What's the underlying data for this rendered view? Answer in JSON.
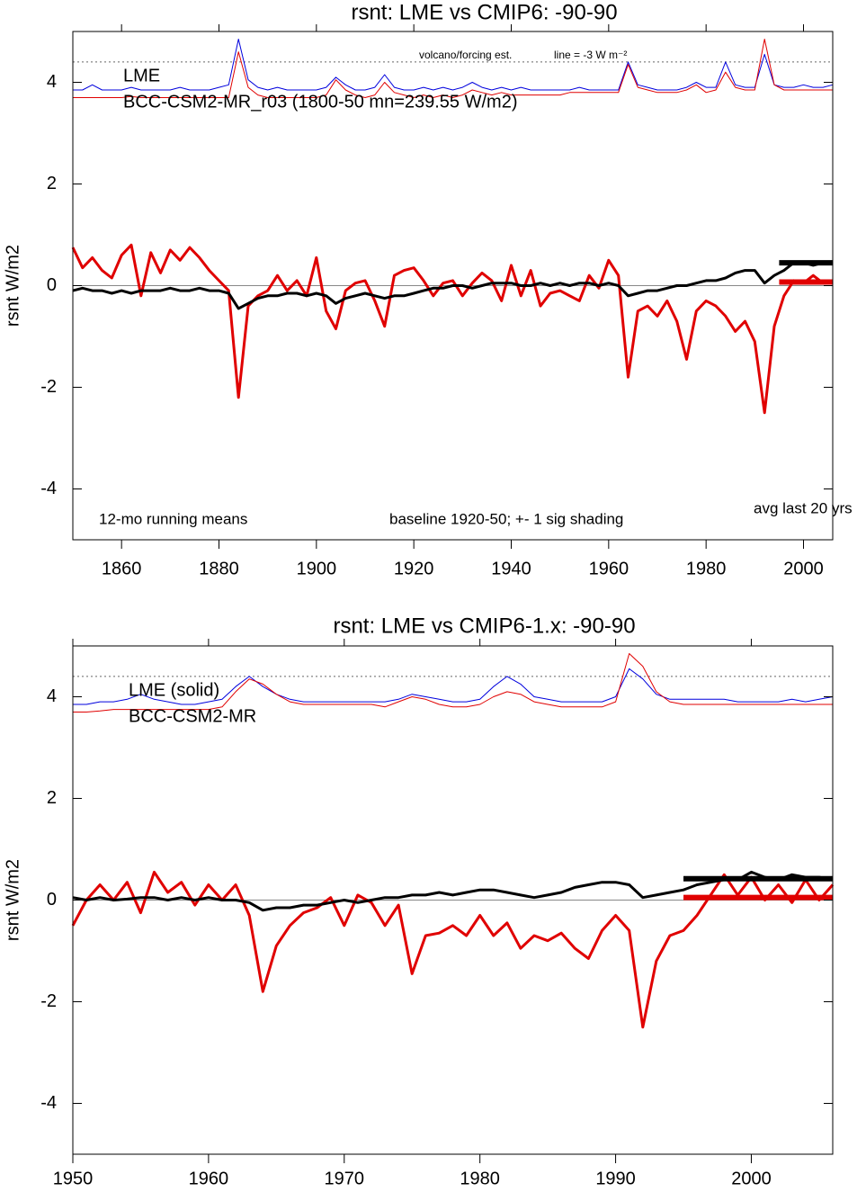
{
  "chart_data": [
    {
      "type": "line",
      "title": "rsnt: LME vs CMIP6: -90-90",
      "ylabel": "rsnt W/m2",
      "xlim": [
        1850,
        2006
      ],
      "ylim": [
        -5,
        5
      ],
      "xticks": [
        1860,
        1880,
        1900,
        1920,
        1940,
        1960,
        1980,
        2000
      ],
      "yticks": [
        -4,
        -2,
        0,
        2,
        4
      ],
      "annotations": [
        "volcano/forcing est.",
        "line = -3 W m⁻²",
        "12-mo running means",
        "baseline 1920-50; +- 1 sig shading",
        "avg last 20 yrs"
      ],
      "reference_lines": [
        {
          "value": 0,
          "style": "solid"
        },
        {
          "value": 4.4,
          "style": "dotted"
        }
      ],
      "averages": [
        {
          "color": "#000000",
          "value": 0.45,
          "x": [
            1995,
            2006
          ]
        },
        {
          "color": "#e00000",
          "value": 0.07,
          "x": [
            1995,
            2006
          ]
        }
      ],
      "x": [
        1850,
        1852,
        1854,
        1856,
        1858,
        1860,
        1862,
        1864,
        1866,
        1868,
        1870,
        1872,
        1874,
        1876,
        1878,
        1880,
        1882,
        1884,
        1886,
        1888,
        1890,
        1892,
        1894,
        1896,
        1898,
        1900,
        1902,
        1904,
        1906,
        1908,
        1910,
        1912,
        1914,
        1916,
        1918,
        1920,
        1922,
        1924,
        1926,
        1928,
        1930,
        1932,
        1934,
        1936,
        1938,
        1940,
        1942,
        1944,
        1946,
        1948,
        1950,
        1952,
        1954,
        1956,
        1958,
        1960,
        1962,
        1964,
        1966,
        1968,
        1970,
        1972,
        1974,
        1976,
        1978,
        1980,
        1982,
        1984,
        1986,
        1988,
        1990,
        1992,
        1994,
        1996,
        1998,
        2000,
        2002,
        2004,
        2006
      ],
      "series": [
        {
          "color": "#0000dd",
          "width": 1,
          "values": [
            3.85,
            3.85,
            3.95,
            3.85,
            3.85,
            3.85,
            3.9,
            3.85,
            3.85,
            3.85,
            3.85,
            3.9,
            3.85,
            3.85,
            3.85,
            3.9,
            3.95,
            4.85,
            4.05,
            3.9,
            3.85,
            3.9,
            3.85,
            3.85,
            3.85,
            3.85,
            3.9,
            4.1,
            3.95,
            3.85,
            3.85,
            3.9,
            4.15,
            3.9,
            3.85,
            3.85,
            3.9,
            3.85,
            3.9,
            3.85,
            3.9,
            4.0,
            3.9,
            3.85,
            3.9,
            3.85,
            3.9,
            3.85,
            3.85,
            3.85,
            3.85,
            3.85,
            3.9,
            3.85,
            3.85,
            3.85,
            3.85,
            4.4,
            3.95,
            3.9,
            3.85,
            3.85,
            3.85,
            3.9,
            4.0,
            3.9,
            3.9,
            4.4,
            3.95,
            3.9,
            3.9,
            4.55,
            3.95,
            3.9,
            3.9,
            3.95,
            3.9,
            3.9,
            3.95
          ]
        },
        {
          "color": "#e00000",
          "width": 1,
          "values": [
            3.7,
            3.7,
            3.7,
            3.7,
            3.7,
            3.7,
            3.72,
            3.7,
            3.7,
            3.7,
            3.7,
            3.7,
            3.7,
            3.7,
            3.7,
            3.7,
            3.7,
            4.6,
            3.9,
            3.75,
            3.7,
            3.7,
            3.7,
            3.7,
            3.7,
            3.7,
            3.75,
            4.05,
            3.85,
            3.75,
            3.7,
            3.75,
            4.0,
            3.8,
            3.75,
            3.7,
            3.75,
            3.7,
            3.75,
            3.7,
            3.75,
            3.85,
            3.8,
            3.75,
            3.8,
            3.75,
            3.75,
            3.75,
            3.75,
            3.75,
            3.75,
            3.8,
            3.8,
            3.8,
            3.8,
            3.8,
            3.8,
            4.35,
            3.9,
            3.85,
            3.8,
            3.8,
            3.8,
            3.85,
            3.95,
            3.8,
            3.85,
            4.2,
            3.9,
            3.85,
            3.85,
            4.85,
            3.95,
            3.85,
            3.85,
            3.85,
            3.85,
            3.85,
            3.85
          ]
        },
        {
          "name": "BCC-CSM2-MR_r03 (1800-50 mn=239.55 W/m2)",
          "color": "#e00000",
          "width": 3,
          "values": [
            0.75,
            0.35,
            0.55,
            0.3,
            0.15,
            0.6,
            0.8,
            -0.2,
            0.65,
            0.25,
            0.7,
            0.5,
            0.75,
            0.55,
            0.3,
            0.1,
            -0.1,
            -2.2,
            -0.4,
            -0.2,
            -0.1,
            0.2,
            -0.1,
            0.1,
            -0.2,
            0.55,
            -0.5,
            -0.85,
            -0.1,
            0.05,
            0.1,
            -0.3,
            -0.8,
            0.2,
            0.3,
            0.35,
            0.1,
            -0.2,
            0.05,
            0.1,
            -0.2,
            0.05,
            0.25,
            0.1,
            -0.3,
            0.4,
            -0.2,
            0.3,
            -0.4,
            -0.15,
            -0.1,
            -0.2,
            -0.3,
            0.2,
            -0.05,
            0.5,
            0.2,
            -1.8,
            -0.5,
            -0.4,
            -0.6,
            -0.3,
            -0.7,
            -1.45,
            -0.5,
            -0.3,
            -0.4,
            -0.6,
            -0.9,
            -0.7,
            -1.1,
            -2.5,
            -0.8,
            -0.2,
            0.1,
            0.05,
            0.2,
            0.05,
            0.1
          ]
        },
        {
          "name": "LME",
          "color": "#000000",
          "width": 3,
          "values": [
            -0.1,
            -0.05,
            -0.1,
            -0.1,
            -0.15,
            -0.1,
            -0.15,
            -0.1,
            -0.1,
            -0.1,
            -0.05,
            -0.1,
            -0.1,
            -0.05,
            -0.1,
            -0.1,
            -0.15,
            -0.45,
            -0.35,
            -0.25,
            -0.2,
            -0.2,
            -0.15,
            -0.15,
            -0.2,
            -0.15,
            -0.2,
            -0.35,
            -0.25,
            -0.2,
            -0.15,
            -0.2,
            -0.25,
            -0.2,
            -0.2,
            -0.15,
            -0.1,
            -0.05,
            -0.05,
            0,
            0,
            -0.05,
            0,
            0.05,
            0.05,
            0.05,
            0,
            0,
            0.05,
            0,
            0.05,
            0,
            0.05,
            0.05,
            0,
            0.05,
            0,
            -0.2,
            -0.15,
            -0.1,
            -0.1,
            -0.05,
            0,
            0,
            0.05,
            0.1,
            0.1,
            0.15,
            0.25,
            0.3,
            0.3,
            0.05,
            0.2,
            0.3,
            0.45,
            0.45,
            0.4,
            0.45,
            0.45
          ]
        }
      ]
    },
    {
      "type": "line",
      "title": "rsnt: LME vs CMIP6-1.x: -90-90",
      "ylabel": "rsnt W/m2",
      "xlim": [
        1950,
        2006
      ],
      "ylim": [
        -5,
        5
      ],
      "xticks": [
        1950,
        1960,
        1970,
        1980,
        1990,
        2000
      ],
      "yticks": [
        -4,
        -2,
        0,
        2,
        4
      ],
      "reference_lines": [
        {
          "value": 0,
          "style": "solid"
        },
        {
          "value": 4.4,
          "style": "dotted"
        }
      ],
      "averages": [
        {
          "color": "#000000",
          "value": 0.42,
          "x": [
            1995,
            2006
          ]
        },
        {
          "color": "#e00000",
          "value": 0.05,
          "x": [
            1995,
            2006
          ]
        }
      ],
      "x": [
        1950,
        1951,
        1952,
        1953,
        1954,
        1955,
        1956,
        1957,
        1958,
        1959,
        1960,
        1961,
        1962,
        1963,
        1964,
        1965,
        1966,
        1967,
        1968,
        1969,
        1970,
        1971,
        1972,
        1973,
        1974,
        1975,
        1976,
        1977,
        1978,
        1979,
        1980,
        1981,
        1982,
        1983,
        1984,
        1985,
        1986,
        1987,
        1988,
        1989,
        1990,
        1991,
        1992,
        1993,
        1994,
        1995,
        1996,
        1997,
        1998,
        1999,
        2000,
        2001,
        2002,
        2003,
        2004,
        2005,
        2006
      ],
      "series": [
        {
          "color": "#0000dd",
          "width": 1,
          "values": [
            3.85,
            3.85,
            3.9,
            3.9,
            3.95,
            4.05,
            3.95,
            3.9,
            3.85,
            3.85,
            3.9,
            3.95,
            4.2,
            4.4,
            4.2,
            4.05,
            3.95,
            3.9,
            3.9,
            3.9,
            3.9,
            3.9,
            3.9,
            3.9,
            3.95,
            4.05,
            4.0,
            3.95,
            3.9,
            3.9,
            3.95,
            4.2,
            4.4,
            4.25,
            4.0,
            3.95,
            3.9,
            3.9,
            3.9,
            3.9,
            4.0,
            4.55,
            4.35,
            4.05,
            3.95,
            3.95,
            3.95,
            3.95,
            3.95,
            3.9,
            3.9,
            3.9,
            3.9,
            3.95,
            3.9,
            3.95,
            4.0
          ]
        },
        {
          "color": "#e00000",
          "width": 1,
          "values": [
            3.7,
            3.7,
            3.72,
            3.75,
            3.75,
            3.75,
            3.75,
            3.75,
            3.75,
            3.75,
            3.75,
            3.8,
            4.1,
            4.35,
            4.25,
            4.05,
            3.9,
            3.85,
            3.85,
            3.85,
            3.85,
            3.85,
            3.85,
            3.8,
            3.9,
            4.0,
            3.95,
            3.85,
            3.8,
            3.8,
            3.85,
            4.0,
            4.1,
            4.05,
            3.9,
            3.85,
            3.8,
            3.8,
            3.8,
            3.8,
            3.9,
            4.85,
            4.6,
            4.1,
            3.9,
            3.85,
            3.85,
            3.85,
            3.85,
            3.85,
            3.85,
            3.85,
            3.85,
            3.85,
            3.85,
            3.85,
            3.85
          ]
        },
        {
          "name": "BCC-CSM2-MR",
          "color": "#e00000",
          "width": 3,
          "values": [
            -0.5,
            0.0,
            0.3,
            0.0,
            0.35,
            -0.25,
            0.55,
            0.15,
            0.35,
            -0.1,
            0.3,
            0.0,
            0.3,
            -0.3,
            -1.8,
            -0.9,
            -0.5,
            -0.25,
            -0.15,
            0.05,
            -0.5,
            0.1,
            -0.05,
            -0.5,
            -0.1,
            -1.45,
            -0.7,
            -0.65,
            -0.5,
            -0.7,
            -0.3,
            -0.7,
            -0.45,
            -0.95,
            -0.7,
            -0.8,
            -0.65,
            -0.95,
            -1.15,
            -0.6,
            -0.3,
            -0.6,
            -2.5,
            -1.2,
            -0.7,
            -0.6,
            -0.3,
            0.1,
            0.5,
            0.1,
            0.45,
            0.0,
            0.3,
            -0.05,
            0.4,
            0.0,
            0.3
          ]
        },
        {
          "name": "LME (solid)",
          "color": "#000000",
          "width": 3,
          "values": [
            0.05,
            0.0,
            0.05,
            0.0,
            0.02,
            0.05,
            0.05,
            0.0,
            0.05,
            0.0,
            0.05,
            0.0,
            0.0,
            -0.05,
            -0.2,
            -0.15,
            -0.15,
            -0.1,
            -0.1,
            -0.05,
            0.0,
            -0.05,
            0.0,
            0.05,
            0.05,
            0.1,
            0.1,
            0.15,
            0.1,
            0.15,
            0.2,
            0.2,
            0.15,
            0.1,
            0.05,
            0.1,
            0.15,
            0.25,
            0.3,
            0.35,
            0.35,
            0.3,
            0.05,
            0.1,
            0.15,
            0.2,
            0.3,
            0.35,
            0.4,
            0.4,
            0.55,
            0.45,
            0.4,
            0.5,
            0.45,
            0.45,
            0.4
          ]
        }
      ]
    }
  ]
}
